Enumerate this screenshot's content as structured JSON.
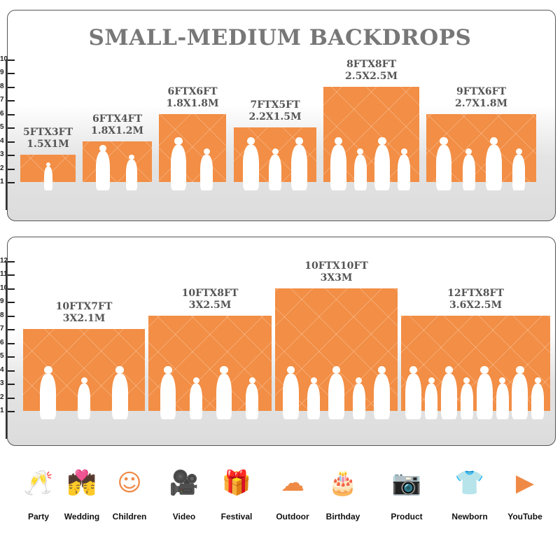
{
  "title": "SMALL-MEDIUM BACKDROPS",
  "top_axis_ticks": [
    1,
    2,
    3,
    4,
    5,
    6,
    7,
    8,
    9,
    10
  ],
  "bottom_axis_ticks": [
    1,
    2,
    3,
    4,
    5,
    6,
    7,
    8,
    9,
    10,
    11,
    12
  ],
  "colors": {
    "backdrop": "#f28e45",
    "icon": "#ef8a46",
    "label": "#555555"
  },
  "top_sizes": [
    {
      "ft": "5FTX3FT",
      "m": "1.5X1M",
      "height_ft": 3,
      "people": 1
    },
    {
      "ft": "6FTX4FT",
      "m": "1.8X1.2M",
      "height_ft": 4,
      "people": 2
    },
    {
      "ft": "6FTX6FT",
      "m": "1.8X1.8M",
      "height_ft": 6,
      "people": 2
    },
    {
      "ft": "7FTX5FT",
      "m": "2.2X1.5M",
      "height_ft": 5,
      "people": 3
    },
    {
      "ft": "8FTX8FT",
      "m": "2.5X2.5M",
      "height_ft": 8,
      "people": 4
    },
    {
      "ft": "9FTX6FT",
      "m": "2.7X1.8M",
      "height_ft": 6,
      "people": 4
    }
  ],
  "bottom_sizes": [
    {
      "ft": "10FTX7FT",
      "m": "3X2.1M",
      "height_ft": 7,
      "people": 3
    },
    {
      "ft": "10FTX8FT",
      "m": "3X2.5M",
      "height_ft": 8,
      "people": 4
    },
    {
      "ft": "10FTX10FT",
      "m": "3X3M",
      "height_ft": 10,
      "people": 5
    },
    {
      "ft": "12FTX8FT",
      "m": "3.6X2.5M",
      "height_ft": 8,
      "people": 8
    }
  ],
  "uses": [
    {
      "label": "Party",
      "icon": "toast-glasses-icon",
      "glyph": "🥂"
    },
    {
      "label": "Wedding",
      "icon": "wedding-couple-icon",
      "glyph": "💏"
    },
    {
      "label": "Children",
      "icon": "children-faces-icon",
      "glyph": "☺"
    },
    {
      "label": "Video",
      "icon": "video-camera-icon",
      "glyph": "🎥"
    },
    {
      "label": "Festival",
      "icon": "gift-box-icon",
      "glyph": "🎁"
    },
    {
      "label": "Outdoor",
      "icon": "cloud-icon",
      "glyph": "☁"
    },
    {
      "label": "Birthday",
      "icon": "birthday-cake-icon",
      "glyph": "🎂"
    },
    {
      "label": "Product",
      "icon": "camera-icon",
      "glyph": "📷"
    },
    {
      "label": "Newborn",
      "icon": "baby-onesie-icon",
      "glyph": "👕"
    },
    {
      "label": "YouTube",
      "icon": "play-button-icon",
      "glyph": "▶"
    }
  ]
}
